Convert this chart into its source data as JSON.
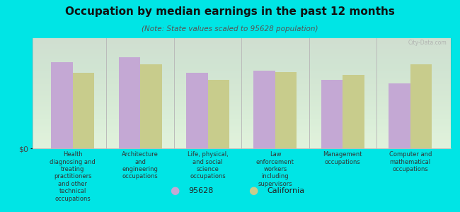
{
  "title": "Occupation by median earnings in the past 12 months",
  "subtitle": "(Note: State values scaled to 95628 population)",
  "background_color": "#00e5e5",
  "plot_bg_top": "#f5faee",
  "plot_bg_bottom": "#eef5dd",
  "bar_color_local": "#c4a8d4",
  "bar_color_state": "#c8cc8c",
  "categories": [
    "Health\ndiagnosing and\ntreating\npractitioners\nand other\ntechnical\noccupations",
    "Architecture\nand\nengineering\noccupations",
    "Life, physical,\nand social\nscience\noccupations",
    "Law\nenforcement\nworkers\nincluding\nsupervisors",
    "Management\noccupations",
    "Computer and\nmathematical\noccupations"
  ],
  "values_local": [
    0.82,
    0.87,
    0.72,
    0.74,
    0.65,
    0.62
  ],
  "values_state": [
    0.72,
    0.8,
    0.65,
    0.73,
    0.7,
    0.8
  ],
  "ylabel": "$0",
  "legend_local": "95628",
  "legend_state": "California",
  "ylim": [
    0,
    1.05
  ],
  "watermark": "City-Data.com"
}
